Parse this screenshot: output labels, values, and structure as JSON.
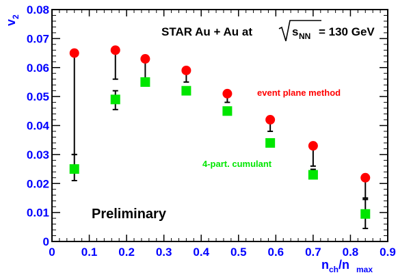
{
  "chart_data": {
    "type": "scatter",
    "title_prefix": "STAR Au + Au at",
    "title_root": "s",
    "title_root_sub": "NN",
    "title_suffix": "= 130 GeV",
    "xlabel": {
      "main": "n",
      "sub1": "ch",
      "slash": "/n",
      "sub2": "max"
    },
    "ylabel": {
      "main": "v",
      "sub": "2"
    },
    "xlim": [
      0,
      0.9
    ],
    "ylim": [
      0,
      0.08
    ],
    "x_ticks": [
      "0",
      "0.1",
      "0.2",
      "0.3",
      "0.4",
      "0.5",
      "0.6",
      "0.7",
      "0.8",
      "0.9"
    ],
    "y_ticks": [
      "0",
      "0.01",
      "0.02",
      "0.03",
      "0.04",
      "0.05",
      "0.06",
      "0.07",
      "0.08"
    ],
    "x_tick_values": [
      0,
      0.1,
      0.2,
      0.3,
      0.4,
      0.5,
      0.6,
      0.7,
      0.8,
      0.9
    ],
    "y_tick_values": [
      0,
      0.01,
      0.02,
      0.03,
      0.04,
      0.05,
      0.06,
      0.07,
      0.08
    ],
    "series": [
      {
        "name": "event plane method",
        "marker": "circle",
        "color": "#ff0000",
        "x": [
          0.06,
          0.17,
          0.25,
          0.36,
          0.47,
          0.585,
          0.7,
          0.84
        ],
        "y": [
          0.065,
          0.066,
          0.063,
          0.059,
          0.051,
          0.042,
          0.033,
          0.022
        ],
        "err_low": [
          0.035,
          0.01,
          0.007,
          0.004,
          0.003,
          0.004,
          0.007,
          0.007
        ],
        "err_high": [
          0,
          0,
          0,
          0,
          0,
          0,
          0,
          0
        ]
      },
      {
        "name": "4-part. cumulant",
        "marker": "square",
        "color": "#00e600",
        "x": [
          0.06,
          0.17,
          0.25,
          0.36,
          0.47,
          0.585,
          0.7,
          0.84
        ],
        "y": [
          0.025,
          0.049,
          0.055,
          0.052,
          0.045,
          0.034,
          0.023,
          0.0095
        ],
        "err_low": [
          0.004,
          0.0035,
          0.001,
          0.001,
          0.0005,
          0.0005,
          0.0007,
          0.005
        ],
        "err_high": [
          0.005,
          0.003,
          0.001,
          0.001,
          0.0005,
          0.0005,
          0.0019,
          0.005
        ]
      }
    ],
    "annotations": {
      "event_plane": "event plane method",
      "cumulant": "4-part. cumulant",
      "preliminary": "Preliminary"
    }
  }
}
